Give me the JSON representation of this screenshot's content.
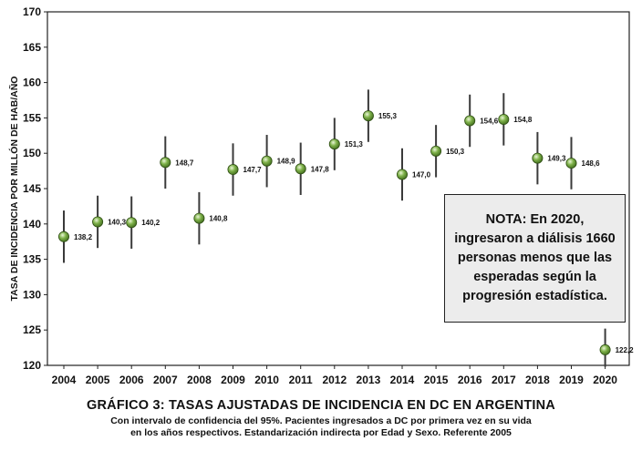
{
  "chart_data": {
    "type": "scatter",
    "title": "GRÁFICO 3: TASAS  AJUSTADAS DE INCIDENCIA  EN DC EN ARGENTINA",
    "subtitle_line1": "Con intervalo de confidencia del 95%.  Pacientes ingresados a DC por primera vez en su vida",
    "subtitle_line2": "en los años respectivos. Estandarización indirecta por Edad y Sexo. Referente 2005",
    "ylabel": "TASA DE INCIDENCIA POR MILLÓN DE HAB/AÑO",
    "xlabel": "",
    "ylim": [
      120,
      170
    ],
    "yticks": [
      120,
      125,
      130,
      135,
      140,
      145,
      150,
      155,
      160,
      165,
      170
    ],
    "grid": false,
    "x": [
      "2004",
      "2005",
      "2006",
      "2007",
      "2008",
      "2009",
      "2010",
      "2011",
      "2012",
      "2013",
      "2014",
      "2015",
      "2016",
      "2017",
      "2018",
      "2019",
      "2020"
    ],
    "values": [
      138.2,
      140.3,
      140.2,
      148.7,
      140.8,
      147.7,
      148.9,
      147.8,
      151.3,
      155.3,
      147.0,
      150.3,
      154.6,
      154.8,
      149.3,
      148.6,
      122.2
    ],
    "value_labels": [
      "138,2",
      "140,3",
      "140,2",
      "148,7",
      "140,8",
      "147,7",
      "148,9",
      "147,8",
      "151,3",
      "155,3",
      "147,0",
      "150,3",
      "154,6",
      "154,8",
      "149,3",
      "148,6",
      "122,2"
    ],
    "ci_lower": [
      134.5,
      136.6,
      136.5,
      145.0,
      137.1,
      144.0,
      145.2,
      144.1,
      147.6,
      151.6,
      143.3,
      146.6,
      150.9,
      151.1,
      145.6,
      144.9,
      119.8
    ],
    "ci_upper": [
      141.9,
      144.0,
      143.9,
      152.4,
      144.5,
      151.4,
      152.6,
      151.5,
      155.0,
      159.0,
      150.7,
      154.0,
      158.3,
      158.5,
      153.0,
      152.3,
      125.2
    ],
    "point_color": "#7fb24a",
    "ci_color": "#3a3a3a",
    "annotation": "NOTA: En 2020, ingresaron a diálisis 1660 personas menos que las esperadas según la progresión estadística."
  }
}
